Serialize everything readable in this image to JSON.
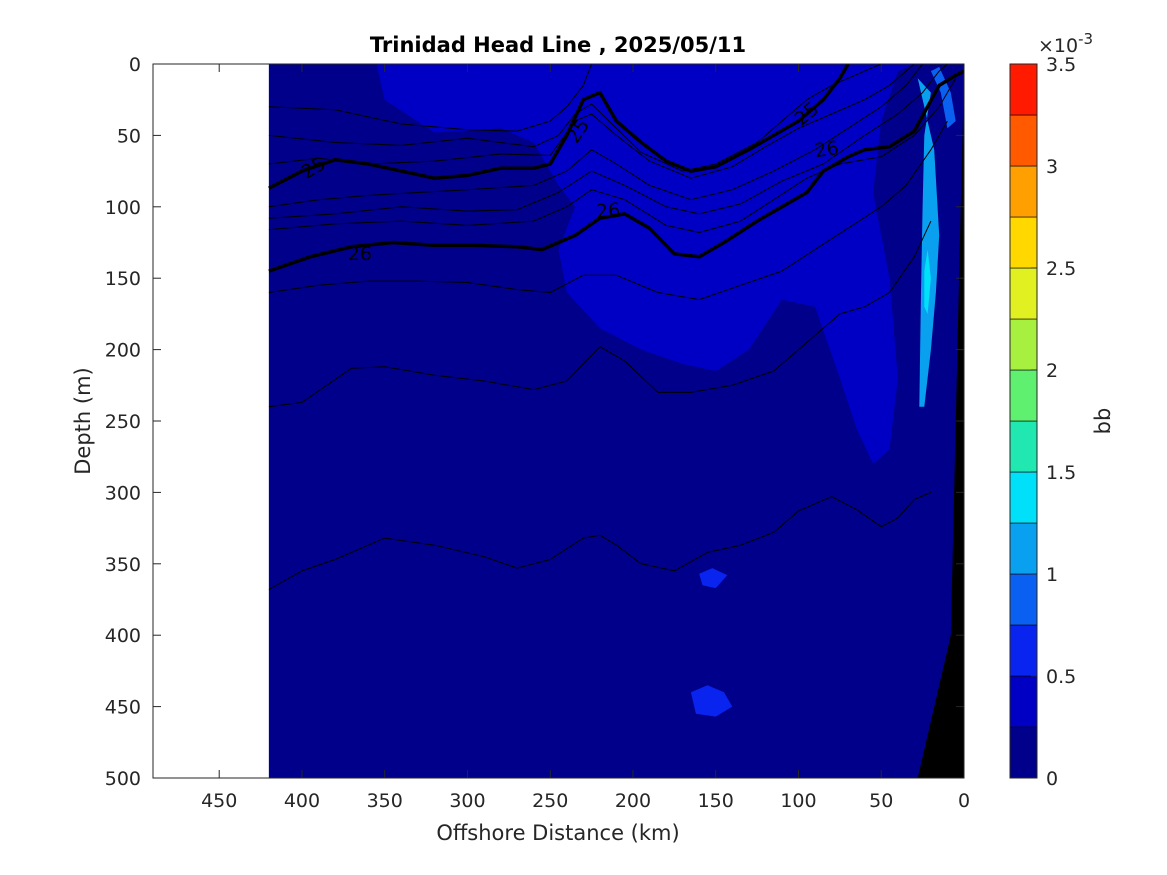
{
  "chart_data": {
    "type": "heatmap",
    "title": "Trinidad Head Line , 2025/05/11",
    "xlabel": "Offshore Distance (km)",
    "ylabel": "Depth (m)",
    "x_reversed": true,
    "y_reversed": true,
    "xlim": [
      0,
      490
    ],
    "ylim": [
      0,
      500
    ],
    "xticks": [
      450,
      400,
      350,
      300,
      250,
      200,
      150,
      100,
      50,
      0
    ],
    "yticks": [
      0,
      50,
      100,
      150,
      200,
      250,
      300,
      350,
      400,
      450,
      500
    ],
    "data_extent_km": [
      0,
      420
    ],
    "colorbar": {
      "label": "bb",
      "exponent_label": "×10",
      "exponent_power": "-3",
      "range": [
        0,
        3.5
      ],
      "ticks": [
        0,
        0.5,
        1,
        1.5,
        2,
        2.5,
        3,
        3.5
      ],
      "tick_labels": [
        "0",
        "0.5",
        "1",
        "1.5",
        "2",
        "2.5",
        "3",
        "3.5"
      ],
      "levels": [
        0,
        0.25,
        0.5,
        0.75,
        1.0,
        1.25,
        1.5,
        1.75,
        2.0,
        2.25,
        2.5,
        2.75,
        3.0,
        3.25,
        3.5
      ],
      "colors": [
        "#00008b",
        "#0000c4",
        "#0a24f0",
        "#0a60f0",
        "#0aa0f0",
        "#00e0f8",
        "#20e8b0",
        "#60f070",
        "#a8f040",
        "#e0f020",
        "#ffd800",
        "#ffa000",
        "#ff5a00",
        "#ff1a00",
        "#c00000"
      ]
    },
    "background_region": {
      "name": "lower-values",
      "value_range": [
        0.25,
        0.5
      ],
      "outline": [
        [
          420,
          0
        ],
        [
          355,
          0
        ],
        [
          350,
          25
        ],
        [
          320,
          48
        ],
        [
          280,
          45
        ],
        [
          260,
          55
        ],
        [
          245,
          85
        ],
        [
          235,
          100
        ],
        [
          245,
          130
        ],
        [
          240,
          160
        ],
        [
          220,
          185
        ],
        [
          195,
          200
        ],
        [
          170,
          210
        ],
        [
          150,
          215
        ],
        [
          130,
          200
        ],
        [
          110,
          165
        ],
        [
          90,
          170
        ],
        [
          75,
          220
        ],
        [
          65,
          255
        ],
        [
          55,
          280
        ],
        [
          45,
          270
        ],
        [
          40,
          220
        ],
        [
          45,
          150
        ],
        [
          55,
          90
        ],
        [
          50,
          40
        ],
        [
          40,
          5
        ],
        [
          30,
          0
        ]
      ]
    },
    "patches": [
      {
        "name": "nearshore-high",
        "value": 1.1,
        "points": [
          [
            28,
            10
          ],
          [
            18,
            60
          ],
          [
            15,
            120
          ],
          [
            17,
            160
          ],
          [
            20,
            200
          ],
          [
            24,
            240
          ],
          [
            27,
            240
          ],
          [
            26,
            160
          ],
          [
            25,
            100
          ],
          [
            24,
            50
          ],
          [
            20,
            20
          ]
        ]
      },
      {
        "name": "nearshore-peak",
        "value": 1.4,
        "points": [
          [
            22,
            130
          ],
          [
            20,
            150
          ],
          [
            22,
            175
          ],
          [
            24,
            170
          ],
          [
            24,
            145
          ]
        ]
      },
      {
        "name": "surface-patch",
        "value": 0.9,
        "points": [
          [
            15,
            2
          ],
          [
            8,
            20
          ],
          [
            5,
            40
          ],
          [
            10,
            45
          ],
          [
            14,
            20
          ],
          [
            20,
            5
          ]
        ]
      },
      {
        "name": "blob-450",
        "value": 0.7,
        "points": [
          [
            165,
            440
          ],
          [
            155,
            435
          ],
          [
            145,
            440
          ],
          [
            140,
            450
          ],
          [
            150,
            457
          ],
          [
            162,
            455
          ]
        ]
      },
      {
        "name": "blob-360",
        "value": 0.5,
        "points": [
          [
            160,
            357
          ],
          [
            152,
            353
          ],
          [
            143,
            358
          ],
          [
            150,
            367
          ],
          [
            158,
            365
          ]
        ]
      }
    ],
    "bathymetry": {
      "name": "seafloor",
      "points": [
        [
          0,
          5
        ],
        [
          0,
          500
        ],
        [
          28,
          500
        ],
        [
          8,
          400
        ],
        [
          2,
          100
        ]
      ]
    },
    "contours": [
      {
        "level": "25",
        "bold": true,
        "points": [
          [
            420,
            87
          ],
          [
            400,
            75
          ],
          [
            380,
            67
          ],
          [
            360,
            70
          ],
          [
            340,
            75
          ],
          [
            320,
            80
          ],
          [
            300,
            78
          ],
          [
            280,
            73
          ],
          [
            260,
            73
          ],
          [
            250,
            70
          ],
          [
            240,
            50
          ],
          [
            230,
            25
          ],
          [
            220,
            20
          ],
          [
            210,
            40
          ],
          [
            195,
            55
          ],
          [
            180,
            68
          ],
          [
            165,
            75
          ],
          [
            150,
            72
          ],
          [
            130,
            60
          ],
          [
            115,
            50
          ],
          [
            100,
            40
          ],
          [
            85,
            25
          ],
          [
            75,
            10
          ],
          [
            70,
            0
          ]
        ]
      },
      {
        "level": "26",
        "bold": true,
        "points": [
          [
            420,
            145
          ],
          [
            395,
            135
          ],
          [
            370,
            128
          ],
          [
            345,
            125
          ],
          [
            320,
            127
          ],
          [
            295,
            127
          ],
          [
            270,
            128
          ],
          [
            255,
            130
          ],
          [
            235,
            120
          ],
          [
            220,
            108
          ],
          [
            205,
            105
          ],
          [
            190,
            115
          ],
          [
            175,
            133
          ],
          [
            160,
            135
          ],
          [
            145,
            125
          ],
          [
            125,
            110
          ],
          [
            110,
            100
          ],
          [
            95,
            90
          ],
          [
            85,
            75
          ],
          [
            70,
            65
          ],
          [
            60,
            60
          ],
          [
            45,
            58
          ],
          [
            30,
            47
          ],
          [
            15,
            15
          ],
          [
            5,
            8
          ],
          [
            0,
            5
          ]
        ]
      },
      {
        "level": "",
        "bold": false,
        "points": [
          [
            420,
            30
          ],
          [
            380,
            32
          ],
          [
            340,
            42
          ],
          [
            300,
            46
          ],
          [
            270,
            47
          ],
          [
            250,
            40
          ],
          [
            240,
            30
          ],
          [
            230,
            15
          ],
          [
            225,
            0
          ]
        ]
      },
      {
        "level": "",
        "bold": false,
        "points": [
          [
            420,
            50
          ],
          [
            380,
            55
          ],
          [
            340,
            57
          ],
          [
            300,
            52
          ],
          [
            260,
            58
          ],
          [
            245,
            50
          ],
          [
            235,
            35
          ],
          [
            225,
            28
          ],
          [
            210,
            45
          ],
          [
            195,
            62
          ],
          [
            170,
            75
          ],
          [
            150,
            70
          ],
          [
            125,
            55
          ],
          [
            110,
            40
          ],
          [
            95,
            25
          ],
          [
            80,
            15
          ],
          [
            60,
            5
          ],
          [
            50,
            0
          ]
        ]
      },
      {
        "level": "",
        "bold": false,
        "points": [
          [
            420,
            70
          ],
          [
            390,
            66
          ],
          [
            360,
            70
          ],
          [
            320,
            68
          ],
          [
            280,
            63
          ],
          [
            250,
            64
          ],
          [
            235,
            40
          ],
          [
            225,
            35
          ],
          [
            210,
            50
          ],
          [
            190,
            68
          ],
          [
            165,
            80
          ],
          [
            140,
            72
          ],
          [
            120,
            58
          ],
          [
            100,
            45
          ],
          [
            80,
            35
          ],
          [
            60,
            25
          ],
          [
            45,
            15
          ],
          [
            30,
            0
          ]
        ]
      },
      {
        "level": "",
        "bold": false,
        "points": [
          [
            420,
            100
          ],
          [
            390,
            95
          ],
          [
            360,
            92
          ],
          [
            330,
            90
          ],
          [
            300,
            88
          ],
          [
            260,
            85
          ],
          [
            240,
            75
          ],
          [
            225,
            60
          ],
          [
            210,
            70
          ],
          [
            190,
            85
          ],
          [
            165,
            95
          ],
          [
            140,
            88
          ],
          [
            115,
            75
          ],
          [
            90,
            60
          ],
          [
            70,
            45
          ],
          [
            50,
            30
          ],
          [
            35,
            15
          ],
          [
            25,
            0
          ]
        ]
      },
      {
        "level": "",
        "bold": false,
        "points": [
          [
            420,
            108
          ],
          [
            380,
            105
          ],
          [
            340,
            100
          ],
          [
            300,
            103
          ],
          [
            270,
            102
          ],
          [
            245,
            90
          ],
          [
            225,
            75
          ],
          [
            205,
            85
          ],
          [
            180,
            100
          ],
          [
            160,
            105
          ],
          [
            135,
            98
          ],
          [
            110,
            82
          ],
          [
            85,
            70
          ],
          [
            60,
            50
          ],
          [
            40,
            35
          ],
          [
            25,
            20
          ],
          [
            15,
            5
          ],
          [
            10,
            0
          ]
        ]
      },
      {
        "level": "",
        "bold": false,
        "points": [
          [
            420,
            116
          ],
          [
            380,
            112
          ],
          [
            340,
            110
          ],
          [
            300,
            113
          ],
          [
            260,
            110
          ],
          [
            240,
            100
          ],
          [
            225,
            88
          ],
          [
            205,
            95
          ],
          [
            180,
            113
          ],
          [
            160,
            118
          ],
          [
            135,
            110
          ],
          [
            115,
            95
          ],
          [
            95,
            80
          ],
          [
            75,
            70
          ],
          [
            50,
            65
          ],
          [
            30,
            50
          ],
          [
            15,
            30
          ],
          [
            5,
            10
          ]
        ]
      },
      {
        "level": "",
        "bold": false,
        "points": [
          [
            420,
            160
          ],
          [
            390,
            155
          ],
          [
            360,
            152
          ],
          [
            330,
            152
          ],
          [
            300,
            153
          ],
          [
            270,
            158
          ],
          [
            250,
            160
          ],
          [
            230,
            148
          ],
          [
            210,
            148
          ],
          [
            185,
            160
          ],
          [
            160,
            165
          ],
          [
            135,
            155
          ],
          [
            110,
            145
          ],
          [
            90,
            130
          ],
          [
            70,
            115
          ],
          [
            50,
            100
          ],
          [
            35,
            85
          ],
          [
            20,
            60
          ],
          [
            10,
            40
          ]
        ]
      },
      {
        "level": "",
        "bold": false,
        "points": [
          [
            420,
            240
          ],
          [
            400,
            237
          ],
          [
            370,
            213
          ],
          [
            350,
            212
          ],
          [
            320,
            218
          ],
          [
            290,
            222
          ],
          [
            260,
            228
          ],
          [
            240,
            222
          ],
          [
            220,
            198
          ],
          [
            205,
            208
          ],
          [
            185,
            230
          ],
          [
            165,
            230
          ],
          [
            140,
            225
          ],
          [
            115,
            215
          ],
          [
            95,
            195
          ],
          [
            75,
            175
          ],
          [
            60,
            170
          ],
          [
            45,
            160
          ],
          [
            30,
            135
          ],
          [
            20,
            110
          ]
        ]
      },
      {
        "level": "",
        "bold": false,
        "points": [
          [
            420,
            368
          ],
          [
            400,
            355
          ],
          [
            380,
            347
          ],
          [
            350,
            332
          ],
          [
            320,
            337
          ],
          [
            290,
            345
          ],
          [
            270,
            353
          ],
          [
            250,
            347
          ],
          [
            230,
            332
          ],
          [
            220,
            330
          ],
          [
            210,
            337
          ],
          [
            195,
            350
          ],
          [
            175,
            355
          ],
          [
            155,
            342
          ],
          [
            135,
            337
          ],
          [
            115,
            328
          ],
          [
            100,
            313
          ],
          [
            80,
            303
          ],
          [
            65,
            312
          ],
          [
            50,
            324
          ],
          [
            40,
            318
          ],
          [
            30,
            305
          ],
          [
            20,
            300
          ]
        ]
      }
    ],
    "contour_labels": [
      {
        "text": "25",
        "x": 393,
        "y": 73,
        "angle": -30
      },
      {
        "text": "25",
        "x": 233,
        "y": 47,
        "angle": -57
      },
      {
        "text": "25",
        "x": 95,
        "y": 35,
        "angle": -40
      },
      {
        "text": "26",
        "x": 365,
        "y": 133,
        "angle": 0
      },
      {
        "text": "26",
        "x": 215,
        "y": 103,
        "angle": -5
      },
      {
        "text": "26",
        "x": 83,
        "y": 60,
        "angle": -8
      }
    ]
  }
}
